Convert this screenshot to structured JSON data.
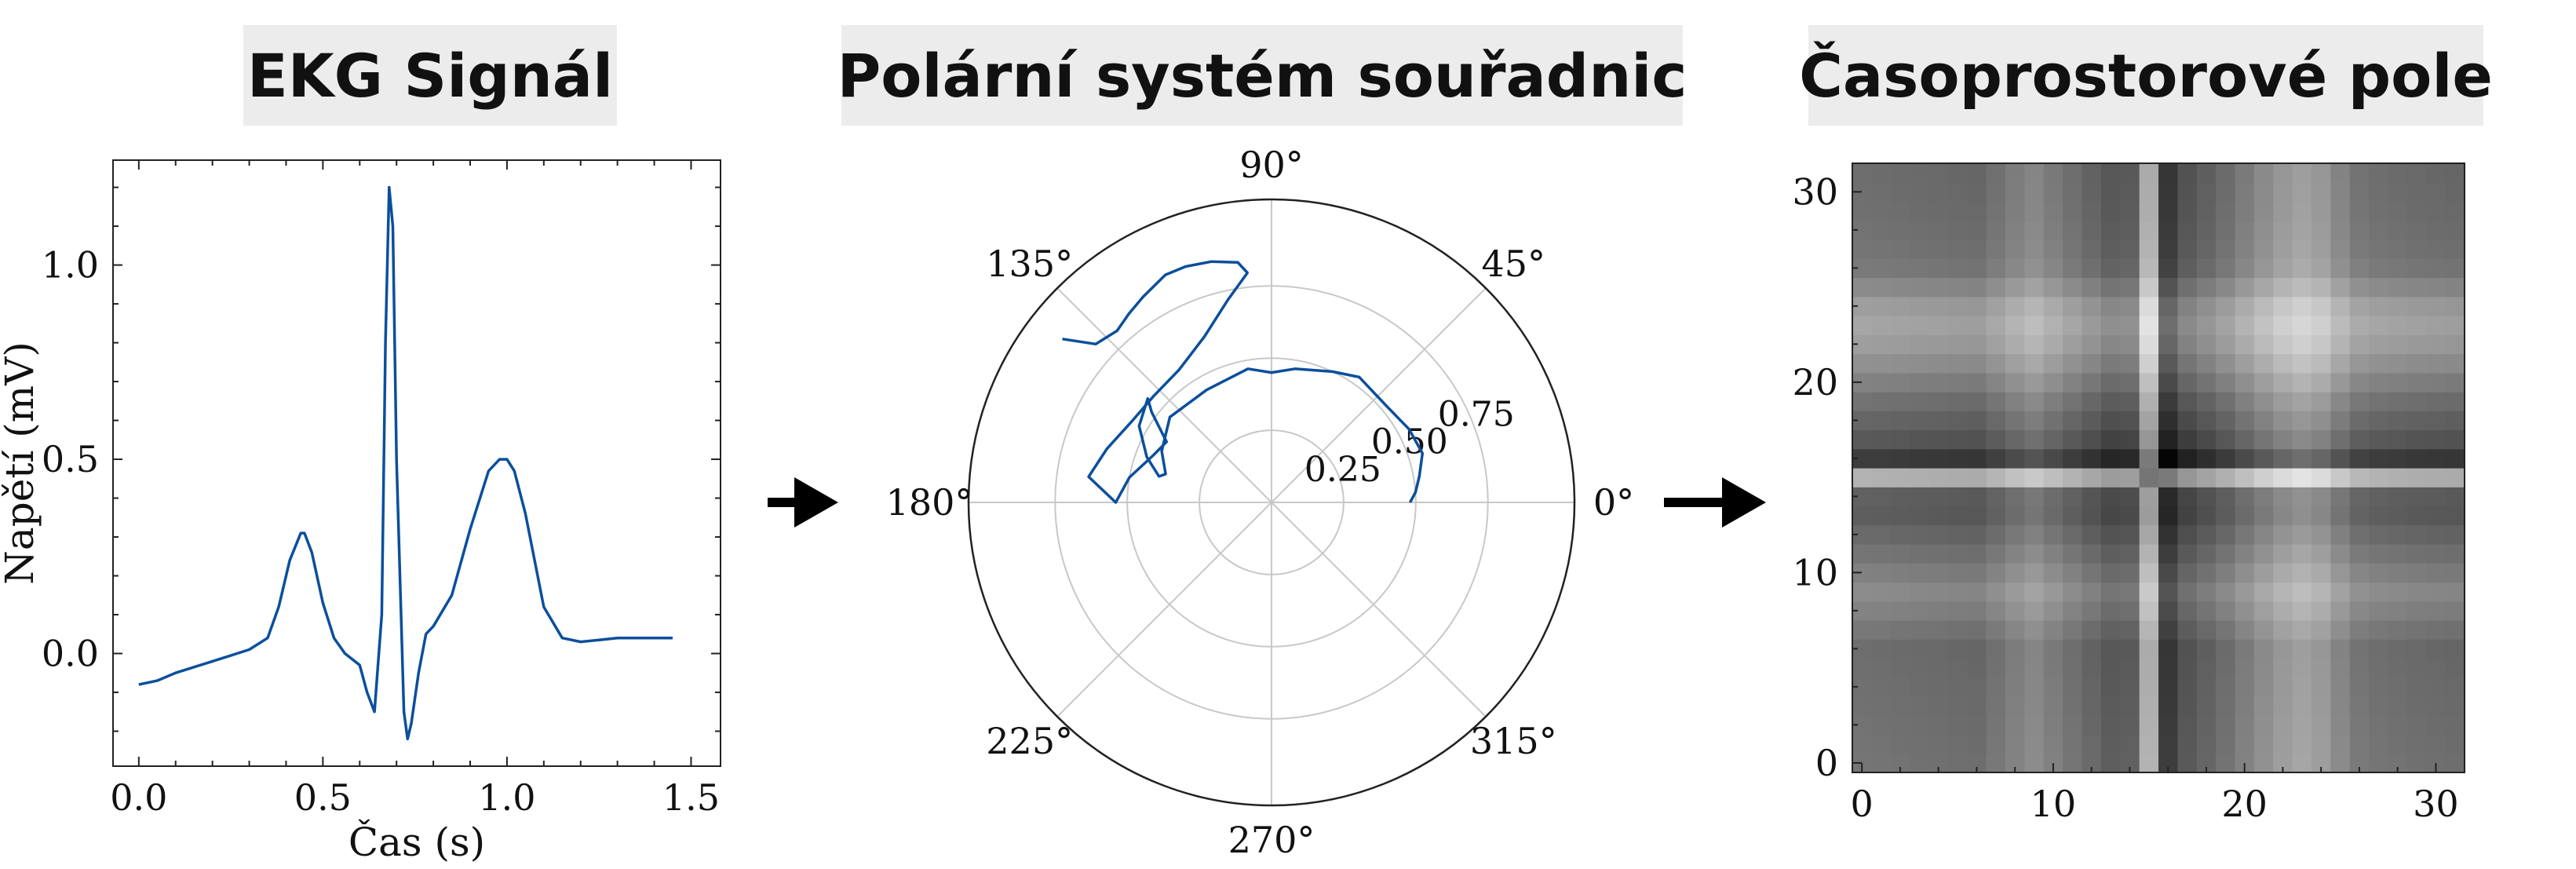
{
  "panels": [
    {
      "title": "EKG Signál"
    },
    {
      "title": "Polární systém souřadnic"
    },
    {
      "title": "Časoprostorové pole"
    }
  ],
  "colors": {
    "signal": "#0b4f9c",
    "arrow": "#000000",
    "title_bg": "#ececec",
    "grid": "#c8c8c8"
  },
  "chart_data": [
    {
      "type": "line",
      "xlabel": "Čas (s)",
      "ylabel": "Napětí (mV)",
      "xlim": [
        -0.07,
        1.58
      ],
      "ylim": [
        -0.29,
        1.27
      ],
      "xticks": [
        0.0,
        0.5,
        1.0,
        1.5
      ],
      "xtick_labels": [
        "0.0",
        "0.5",
        "1.0",
        "1.5"
      ],
      "yticks": [
        0.0,
        0.5,
        1.0
      ],
      "ytick_labels": [
        "0.0",
        "0.5",
        "1.0"
      ],
      "grid": false,
      "series": [
        {
          "x": [
            0.0,
            0.05,
            0.1,
            0.15,
            0.2,
            0.25,
            0.3,
            0.35,
            0.38,
            0.41,
            0.44,
            0.45,
            0.47,
            0.5,
            0.53,
            0.56,
            0.6,
            0.62,
            0.64,
            0.66,
            0.67,
            0.68,
            0.69,
            0.7,
            0.72,
            0.73,
            0.74,
            0.76,
            0.78,
            0.8,
            0.85,
            0.9,
            0.95,
            0.98,
            1.0,
            1.02,
            1.05,
            1.1,
            1.15,
            1.2,
            1.25,
            1.3,
            1.35,
            1.4,
            1.45
          ],
          "y": [
            -0.08,
            -0.07,
            -0.05,
            -0.035,
            -0.02,
            -0.005,
            0.01,
            0.04,
            0.12,
            0.24,
            0.31,
            0.31,
            0.26,
            0.13,
            0.04,
            0.0,
            -0.03,
            -0.1,
            -0.15,
            0.1,
            0.8,
            1.2,
            1.1,
            0.5,
            -0.15,
            -0.22,
            -0.18,
            -0.05,
            0.05,
            0.07,
            0.15,
            0.32,
            0.47,
            0.5,
            0.5,
            0.47,
            0.36,
            0.12,
            0.04,
            0.03,
            0.035,
            0.04,
            0.04,
            0.04,
            0.04
          ]
        }
      ]
    },
    {
      "type": "polar",
      "angle_labels": [
        "0°",
        "45°",
        "90°",
        "135°",
        "180°",
        "225°",
        "270°",
        "315°"
      ],
      "radial_ticks": [
        0.25,
        0.5,
        0.75
      ],
      "radial_labels": [
        "0.25",
        "0.50",
        "0.75"
      ],
      "rlim": [
        0,
        1.05
      ],
      "grid": true,
      "series": [
        {
          "theta_deg": [
            142,
            138,
            132,
            127,
            122,
            115,
            110,
            104,
            98,
            96,
            102,
            112,
            125,
            138,
            150,
            162,
            172,
            180,
            170,
            158,
            150,
            143,
            140,
            150,
            160,
            167,
            165,
            155,
            140,
            120,
            100,
            90,
            80,
            65,
            55,
            40,
            28,
            18,
            10,
            4,
            0
          ],
          "r": [
            0.92,
            0.82,
            0.8,
            0.82,
            0.84,
            0.87,
            0.87,
            0.86,
            0.84,
            0.8,
            0.72,
            0.62,
            0.56,
            0.55,
            0.56,
            0.6,
            0.64,
            0.54,
            0.5,
            0.44,
            0.42,
            0.52,
            0.56,
            0.53,
            0.46,
            0.4,
            0.38,
            0.42,
            0.46,
            0.45,
            0.47,
            0.45,
            0.47,
            0.5,
            0.53,
            0.52,
            0.54,
            0.55,
            0.52,
            0.5,
            0.48
          ]
        }
      ]
    },
    {
      "type": "heatmap",
      "xticks": [
        0,
        10,
        20,
        30
      ],
      "yticks": [
        0,
        10,
        20,
        30
      ],
      "xtick_labels": [
        "0",
        "10",
        "20",
        "30"
      ],
      "ytick_labels": [
        "0",
        "10",
        "20",
        "30"
      ],
      "size": 32,
      "colormap": "gray",
      "profile": [
        0.46,
        0.45,
        0.44,
        0.43,
        0.42,
        0.41,
        0.4,
        0.48,
        0.57,
        0.64,
        0.55,
        0.46,
        0.37,
        0.28,
        0.3,
        0.94,
        0.02,
        0.24,
        0.34,
        0.44,
        0.56,
        0.68,
        0.78,
        0.84,
        0.78,
        0.63,
        0.5,
        0.46,
        0.44,
        0.42,
        0.41,
        0.4
      ]
    }
  ]
}
